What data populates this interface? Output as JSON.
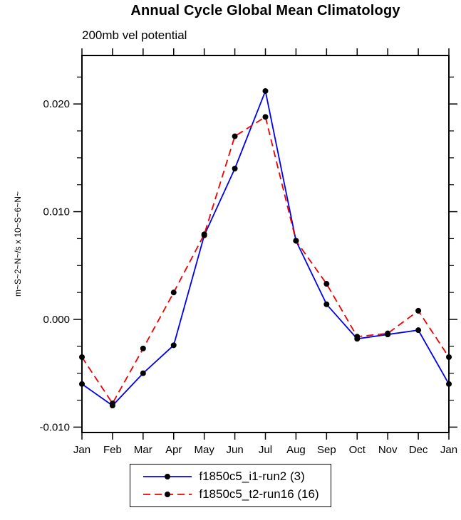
{
  "chart_data": {
    "type": "line",
    "title": "Annual Cycle Global Mean Climatology",
    "subtitle": "200mb vel potential",
    "xlabel": "",
    "ylabel": "m~S~2~N~/s x 10~S~6~N~",
    "categories": [
      "Jan",
      "Feb",
      "Mar",
      "Apr",
      "May",
      "Jun",
      "Jul",
      "Aug",
      "Sep",
      "Oct",
      "Nov",
      "Dec",
      "Jan"
    ],
    "ylim": [
      -0.0105,
      0.0245
    ],
    "ytick_major": [
      -0.01,
      0.0,
      0.01,
      0.02
    ],
    "ytick_minor_step": 0.0025,
    "grid": false,
    "legend_position": "bottom-center",
    "marker_color": "#000000",
    "series": [
      {
        "name": "f1850c5_i1-run2 (3)",
        "color": "#0000ee",
        "dash": false,
        "values": [
          -0.006,
          -0.008,
          -0.005,
          -0.0024,
          0.0078,
          0.014,
          0.0212,
          0.0073,
          0.0014,
          -0.0018,
          -0.0014,
          -0.001,
          -0.006
        ]
      },
      {
        "name": "f1850c5_t2-run16 (16)",
        "color": "#ee0000",
        "dash": true,
        "values": [
          -0.0035,
          -0.0078,
          -0.0027,
          0.0025,
          0.0079,
          0.017,
          0.0188,
          0.0073,
          0.0033,
          -0.0016,
          -0.0013,
          0.0008,
          -0.0035
        ]
      }
    ]
  }
}
